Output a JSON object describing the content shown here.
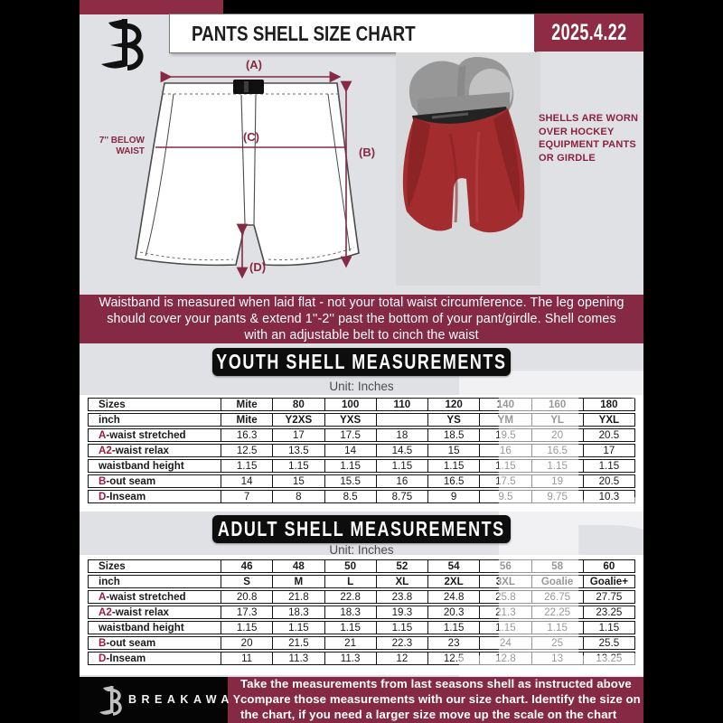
{
  "header": {
    "title": "PANTS SHELL SIZE CHART",
    "date": "2025.4.22"
  },
  "diagram": {
    "label_a": "(A)",
    "label_b": "(B)",
    "label_c": "(C)",
    "label_d": "(D)",
    "side_note": "7'' BELOW WAIST",
    "photo_caption": "SHELLS ARE WORN OVER HOCKEY EQUIPMENT PANTS OR GIRDLE"
  },
  "notice": {
    "text": "Waistband is measured when laid flat - not your total waist circumference. The leg opening should cover your pants & extend 1''-2'' past the bottom of your pant/girdle. Shell comes with an adjustable belt to cinch the waist"
  },
  "youth": {
    "title": "YOUTH SHELL MEASUREMENTS",
    "unit": "Unit: Inches",
    "table": {
      "rows": [
        {
          "prefix": "",
          "label": "Sizes",
          "bold": true,
          "values": [
            "Mite",
            "80",
            "100",
            "110",
            "120",
            "140",
            "160",
            "180"
          ]
        },
        {
          "prefix": "",
          "label": "inch",
          "bold": true,
          "values": [
            "Mite",
            "Y2XS",
            "YXS",
            "",
            "YS",
            "YM",
            "YL",
            "YXL"
          ]
        },
        {
          "prefix": "A",
          "label": "-waist stretched",
          "bold": false,
          "values": [
            "16.3",
            "17",
            "17.5",
            "18",
            "18.5",
            "19.5",
            "20",
            "20.5"
          ]
        },
        {
          "prefix": "A2",
          "label": "-waist relax",
          "bold": false,
          "values": [
            "12.5",
            "13.5",
            "14",
            "14.5",
            "15",
            "16",
            "16.5",
            "17"
          ]
        },
        {
          "prefix": "",
          "label": "waistband height",
          "bold": false,
          "values": [
            "1.15",
            "1.15",
            "1.15",
            "1.15",
            "1.15",
            "1.15",
            "1.15",
            "1.15"
          ]
        },
        {
          "prefix": "B",
          "label": "-out seam",
          "bold": false,
          "values": [
            "14",
            "15",
            "15.5",
            "16",
            "16.5",
            "17.5",
            "19",
            "20.5"
          ]
        },
        {
          "prefix": "D",
          "label": "-Inseam",
          "bold": false,
          "values": [
            "7",
            "8",
            "8.5",
            "8.75",
            "9",
            "9.5",
            "9.75",
            "10.3"
          ]
        }
      ]
    }
  },
  "adult": {
    "title": "ADULT SHELL MEASUREMENTS",
    "unit": "Unit: Inches",
    "table": {
      "rows": [
        {
          "prefix": "",
          "label": "Sizes",
          "bold": true,
          "values": [
            "46",
            "48",
            "50",
            "52",
            "54",
            "56",
            "58",
            "60"
          ]
        },
        {
          "prefix": "",
          "label": "inch",
          "bold": true,
          "values": [
            "S",
            "M",
            "L",
            "XL",
            "2XL",
            "3XL",
            "Goalie",
            "Goalie+"
          ]
        },
        {
          "prefix": "A",
          "label": "-waist stretched",
          "bold": false,
          "values": [
            "20.8",
            "21.8",
            "22.8",
            "23.8",
            "24.8",
            "25.8",
            "26.75",
            "27.75"
          ]
        },
        {
          "prefix": "A2",
          "label": "-waist relax",
          "bold": false,
          "values": [
            "17.3",
            "18.3",
            "18.3",
            "19.3",
            "20.3",
            "21.3",
            "22.25",
            "23.25"
          ]
        },
        {
          "prefix": "",
          "label": "waistband height",
          "bold": false,
          "values": [
            "1.15",
            "1.15",
            "1.15",
            "1.15",
            "1.15",
            "1.15",
            "1.15",
            "1.15"
          ]
        },
        {
          "prefix": "B",
          "label": "-out seam",
          "bold": false,
          "values": [
            "20",
            "21.5",
            "21",
            "22.3",
            "23",
            "24",
            "25",
            "25.5"
          ]
        },
        {
          "prefix": "D",
          "label": "-Inseam",
          "bold": false,
          "values": [
            "11",
            "11.3",
            "11.3",
            "12",
            "12.5",
            "12.8",
            "13",
            "13.25"
          ]
        }
      ]
    }
  },
  "footer": {
    "brand": "BREAKAWAY",
    "text": "Take the measurements from last seasons shell as instructed above compare those measurements  with our size chart. Identify the size on the chart, if you need a larger size move up the scale on the chart"
  },
  "colors": {
    "maroon": "#862944",
    "accent_letter": "#9A1C3E",
    "banner_black": "#0D0D0D",
    "page_bg": "#E0E1E4"
  }
}
